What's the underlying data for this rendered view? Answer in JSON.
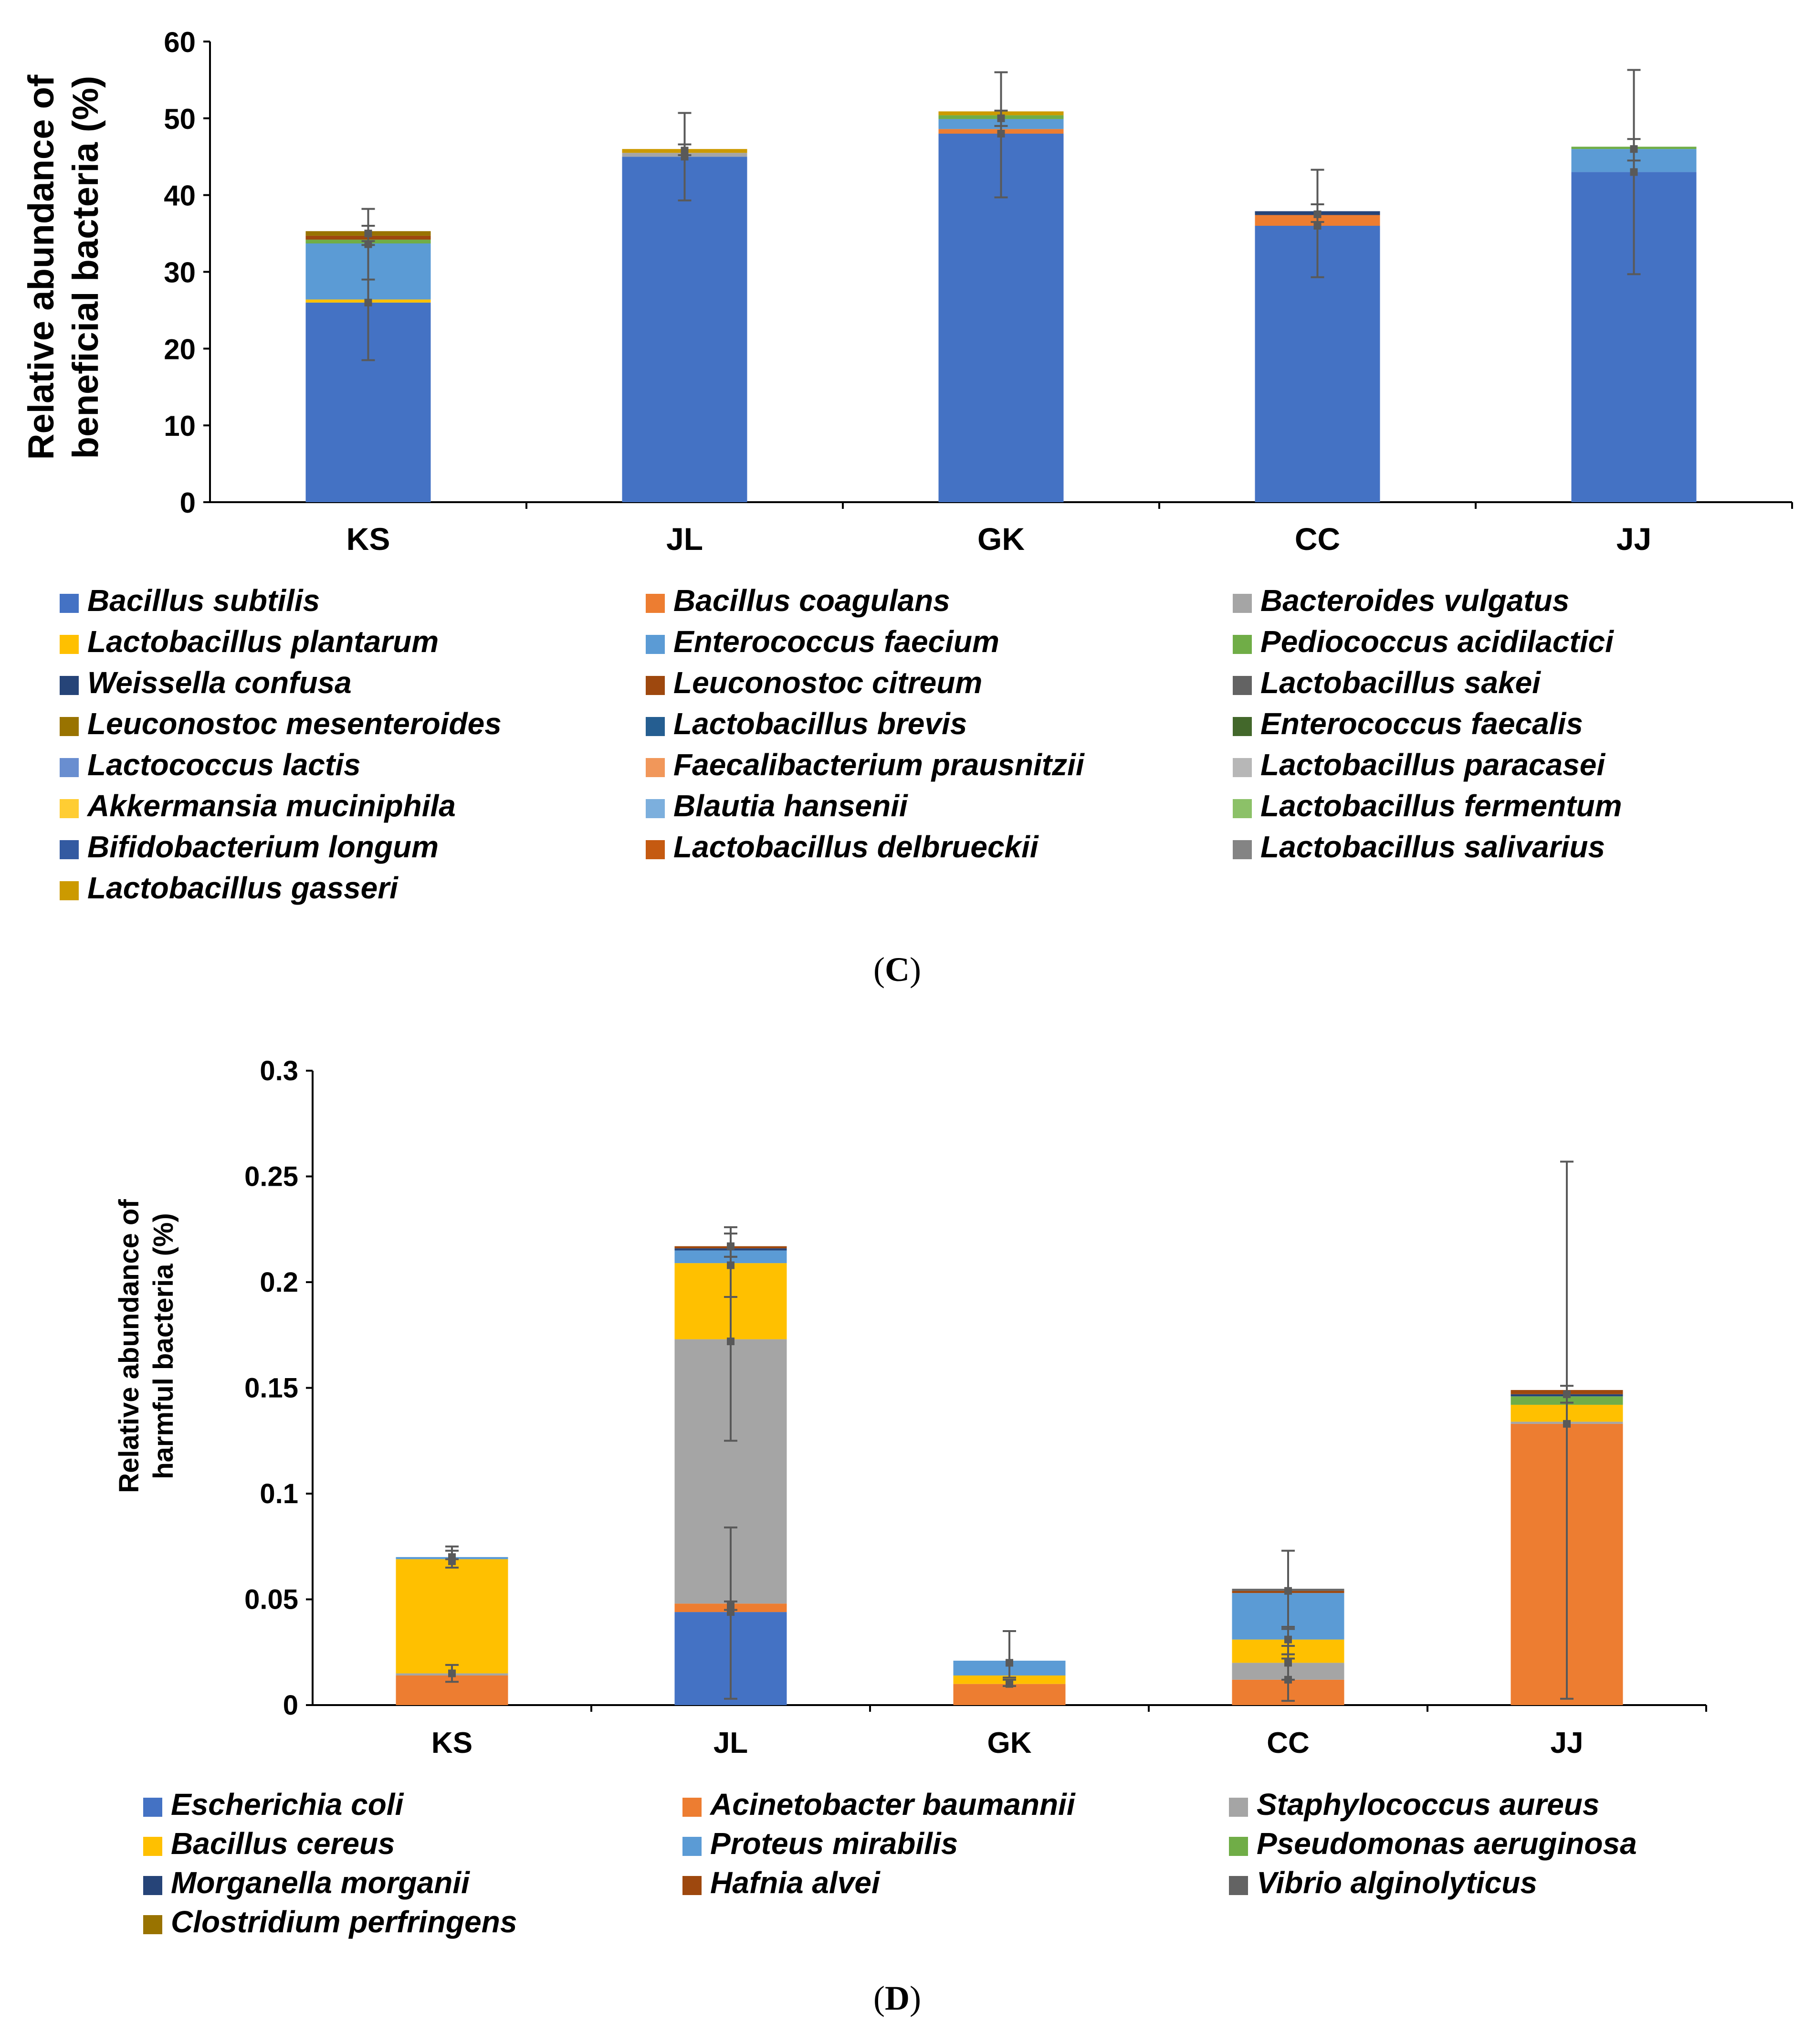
{
  "chart_data": [
    {
      "type": "bar",
      "stacked": true,
      "panel": "C",
      "ylabel_lines": [
        "Relative abundance of",
        "beneficial bacteria (%)"
      ],
      "ylim": [
        0,
        60
      ],
      "yticks": [
        0,
        10,
        20,
        30,
        40,
        50,
        60
      ],
      "categories": [
        "KS",
        "JL",
        "GK",
        "CC",
        "JJ"
      ],
      "series": [
        {
          "name": "Bacillus subtilis",
          "color": "#4472C4",
          "values": [
            26.0,
            45.0,
            48.0,
            36.0,
            43.0
          ]
        },
        {
          "name": "Bacillus coagulans",
          "color": "#ED7D31",
          "values": [
            0.0,
            0.0,
            0.6,
            1.4,
            0.0
          ]
        },
        {
          "name": "Bacteroides vulgatus",
          "color": "#A5A5A5",
          "values": [
            0.0,
            0.5,
            0.0,
            0.0,
            0.0
          ]
        },
        {
          "name": "Lactobacillus plantarum",
          "color": "#FFC000",
          "values": [
            0.4,
            0.0,
            0.0,
            0.0,
            0.0
          ]
        },
        {
          "name": "Enterococcus faecium",
          "color": "#5B9BD5",
          "values": [
            7.3,
            0.0,
            1.3,
            0.0,
            3.0
          ]
        },
        {
          "name": "Pediococcus acidilactici",
          "color": "#70AD47",
          "values": [
            0.5,
            0.0,
            0.5,
            0.0,
            0.3
          ]
        },
        {
          "name": "Weissella confusa",
          "color": "#264478",
          "values": [
            0.0,
            0.0,
            0.0,
            0.5,
            0.0
          ]
        },
        {
          "name": "Leuconostoc citreum",
          "color": "#9E480E",
          "values": [
            0.5,
            0.0,
            0.0,
            0.0,
            0.0
          ]
        },
        {
          "name": "Lactobacillus sakei",
          "color": "#636363",
          "values": [
            0.0,
            0.0,
            0.0,
            0.0,
            0.0
          ]
        },
        {
          "name": "Leuconostoc mesenteroides",
          "color": "#997300",
          "values": [
            0.6,
            0.0,
            0.0,
            0.0,
            0.0
          ]
        },
        {
          "name": "Lactobacillus brevis",
          "color": "#255E91",
          "values": [
            0.0,
            0.0,
            0.0,
            0.0,
            0.0
          ]
        },
        {
          "name": "Enterococcus faecalis",
          "color": "#43682B",
          "values": [
            0.0,
            0.0,
            0.0,
            0.0,
            0.0
          ]
        },
        {
          "name": "Lactococcus lactis",
          "color": "#698ED0",
          "values": [
            0.0,
            0.0,
            0.0,
            0.0,
            0.0
          ]
        },
        {
          "name": "Faecalibacterium prausnitzii",
          "color": "#F1975A",
          "values": [
            0.0,
            0.0,
            0.0,
            0.0,
            0.0
          ]
        },
        {
          "name": "Lactobacillus paracasei",
          "color": "#B7B7B7",
          "values": [
            0.0,
            0.0,
            0.0,
            0.0,
            0.0
          ]
        },
        {
          "name": "Akkermansia muciniphila",
          "color": "#FFCD33",
          "values": [
            0.0,
            0.0,
            0.0,
            0.0,
            0.0
          ]
        },
        {
          "name": "Blautia hansenii",
          "color": "#7CAFDD",
          "values": [
            0.0,
            0.0,
            0.0,
            0.0,
            0.0
          ]
        },
        {
          "name": "Lactobacillus fermentum",
          "color": "#8CC168",
          "values": [
            0.0,
            0.0,
            0.0,
            0.0,
            0.0
          ]
        },
        {
          "name": "Bifidobacterium longum",
          "color": "#335AA1",
          "values": [
            0.0,
            0.0,
            0.0,
            0.0,
            0.0
          ]
        },
        {
          "name": "Lactobacillus delbrueckii",
          "color": "#C55A11",
          "values": [
            0.0,
            0.0,
            0.0,
            0.0,
            0.0
          ]
        },
        {
          "name": "Lactobacillus salivarius",
          "color": "#848484",
          "values": [
            0.0,
            0.0,
            0.0,
            0.0,
            0.0
          ]
        },
        {
          "name": "Lactobacillus gasseri",
          "color": "#CC9A00",
          "values": [
            0.0,
            0.5,
            0.5,
            0.0,
            0.0
          ]
        }
      ],
      "error_bars": [
        {
          "category": "KS",
          "series": "Bacillus subtilis",
          "center": 26.0,
          "low": 18.5,
          "high": 33.5
        },
        {
          "category": "KS",
          "series": "Enterococcus faecium",
          "center": 33.6,
          "low": 29.0,
          "high": 38.2
        },
        {
          "category": "KS",
          "series": "top",
          "center": 35.0,
          "low": 34.0,
          "high": 36.0
        },
        {
          "category": "JL",
          "series": "Bacillus subtilis",
          "center": 45.0,
          "low": 39.3,
          "high": 50.7
        },
        {
          "category": "JL",
          "series": "top",
          "center": 45.8,
          "low": 45.2,
          "high": 46.6
        },
        {
          "category": "GK",
          "series": "Bacillus subtilis",
          "center": 48.0,
          "low": 39.7,
          "high": 56.0
        },
        {
          "category": "GK",
          "series": "top",
          "center": 50.0,
          "low": 49.0,
          "high": 51.0
        },
        {
          "category": "CC",
          "series": "Bacillus subtilis",
          "center": 36.0,
          "low": 29.3,
          "high": 43.3
        },
        {
          "category": "CC",
          "series": "top",
          "center": 37.5,
          "low": 36.5,
          "high": 38.8
        },
        {
          "category": "JJ",
          "series": "Bacillus subtilis",
          "center": 43.0,
          "low": 29.7,
          "high": 56.3
        },
        {
          "category": "JJ",
          "series": "top",
          "center": 46.0,
          "low": 44.5,
          "high": 47.3
        }
      ],
      "caption": "C"
    },
    {
      "type": "bar",
      "stacked": true,
      "panel": "D",
      "ylabel_lines": [
        "Relative abundance of",
        "harmful bacteria (%)"
      ],
      "ylim": [
        0,
        0.3
      ],
      "yticks": [
        0,
        0.05,
        0.1,
        0.15,
        0.2,
        0.25,
        0.3
      ],
      "ytick_labels": [
        "0",
        "0.05",
        "0.1",
        "0.15",
        "0.2",
        "0.25",
        "0.3"
      ],
      "categories": [
        "KS",
        "JL",
        "GK",
        "CC",
        "JJ"
      ],
      "series": [
        {
          "name": "Escherichia coli",
          "color": "#4472C4",
          "values": [
            0.0,
            0.044,
            0.0,
            0.0,
            0.0
          ]
        },
        {
          "name": "Acinetobacter baumannii",
          "color": "#ED7D31",
          "values": [
            0.014,
            0.004,
            0.01,
            0.012,
            0.133
          ]
        },
        {
          "name": "Staphylococcus aureus",
          "color": "#A5A5A5",
          "values": [
            0.001,
            0.125,
            0.0,
            0.008,
            0.001
          ]
        },
        {
          "name": "Bacillus cereus",
          "color": "#FFC000",
          "values": [
            0.054,
            0.036,
            0.004,
            0.011,
            0.008
          ]
        },
        {
          "name": "Proteus mirabilis",
          "color": "#5B9BD5",
          "values": [
            0.001,
            0.006,
            0.007,
            0.022,
            0.0
          ]
        },
        {
          "name": "Pseudomonas aeruginosa",
          "color": "#70AD47",
          "values": [
            0.0,
            0.0,
            0.0,
            0.0,
            0.004
          ]
        },
        {
          "name": "Morganella morganii",
          "color": "#264478",
          "values": [
            0.0,
            0.001,
            0.0,
            0.0,
            0.001
          ]
        },
        {
          "name": "Hafnia alvei",
          "color": "#9E480E",
          "values": [
            0.0,
            0.001,
            0.0,
            0.001,
            0.002
          ]
        },
        {
          "name": "Vibrio alginolyticus",
          "color": "#636363",
          "values": [
            0.0,
            0.0,
            0.0,
            0.001,
            0.0
          ]
        },
        {
          "name": "Clostridium perfringens",
          "color": "#997300",
          "values": [
            0.0,
            0.0,
            0.0,
            0.0,
            0.0
          ]
        }
      ],
      "error_bars": [
        {
          "category": "KS",
          "series": "Acinetobacter baumannii",
          "center": 0.015,
          "low": 0.011,
          "high": 0.019
        },
        {
          "category": "KS",
          "series": "Bacillus cereus",
          "center": 0.068,
          "low": 0.065,
          "high": 0.073
        },
        {
          "category": "KS",
          "series": "top",
          "center": 0.07,
          "low": 0.069,
          "high": 0.075
        },
        {
          "category": "JL",
          "series": "Escherichia coli",
          "center": 0.044,
          "low": 0.003,
          "high": 0.084
        },
        {
          "category": "JL",
          "series": "Acinetobacter baumannii",
          "center": 0.047,
          "low": 0.045,
          "high": 0.049
        },
        {
          "category": "JL",
          "series": "Staphylococcus aureus",
          "center": 0.172,
          "low": 0.125,
          "high": 0.212
        },
        {
          "category": "JL",
          "series": "Bacillus cereus",
          "center": 0.208,
          "low": 0.193,
          "high": 0.223
        },
        {
          "category": "JL",
          "series": "top",
          "center": 0.217,
          "low": 0.212,
          "high": 0.226
        },
        {
          "category": "GK",
          "series": "Acinetobacter baumannii",
          "center": 0.01,
          "low": 0.009,
          "high": 0.012
        },
        {
          "category": "GK",
          "series": "Proteus mirabilis",
          "center": 0.02,
          "low": 0.013,
          "high": 0.035
        },
        {
          "category": "CC",
          "series": "Acinetobacter baumannii",
          "center": 0.012,
          "low": 0.002,
          "high": 0.022
        },
        {
          "category": "CC",
          "series": "Staphylococcus aureus",
          "center": 0.02,
          "low": 0.012,
          "high": 0.028
        },
        {
          "category": "CC",
          "series": "Bacillus cereus",
          "center": 0.031,
          "low": 0.024,
          "high": 0.037
        },
        {
          "category": "CC",
          "series": "top",
          "center": 0.054,
          "low": 0.036,
          "high": 0.073
        },
        {
          "category": "JJ",
          "series": "Acinetobacter baumannii",
          "center": 0.133,
          "low": 0.003,
          "high": 0.257
        },
        {
          "category": "JJ",
          "series": "top",
          "center": 0.147,
          "low": 0.143,
          "high": 0.151
        }
      ],
      "caption": "D"
    }
  ]
}
